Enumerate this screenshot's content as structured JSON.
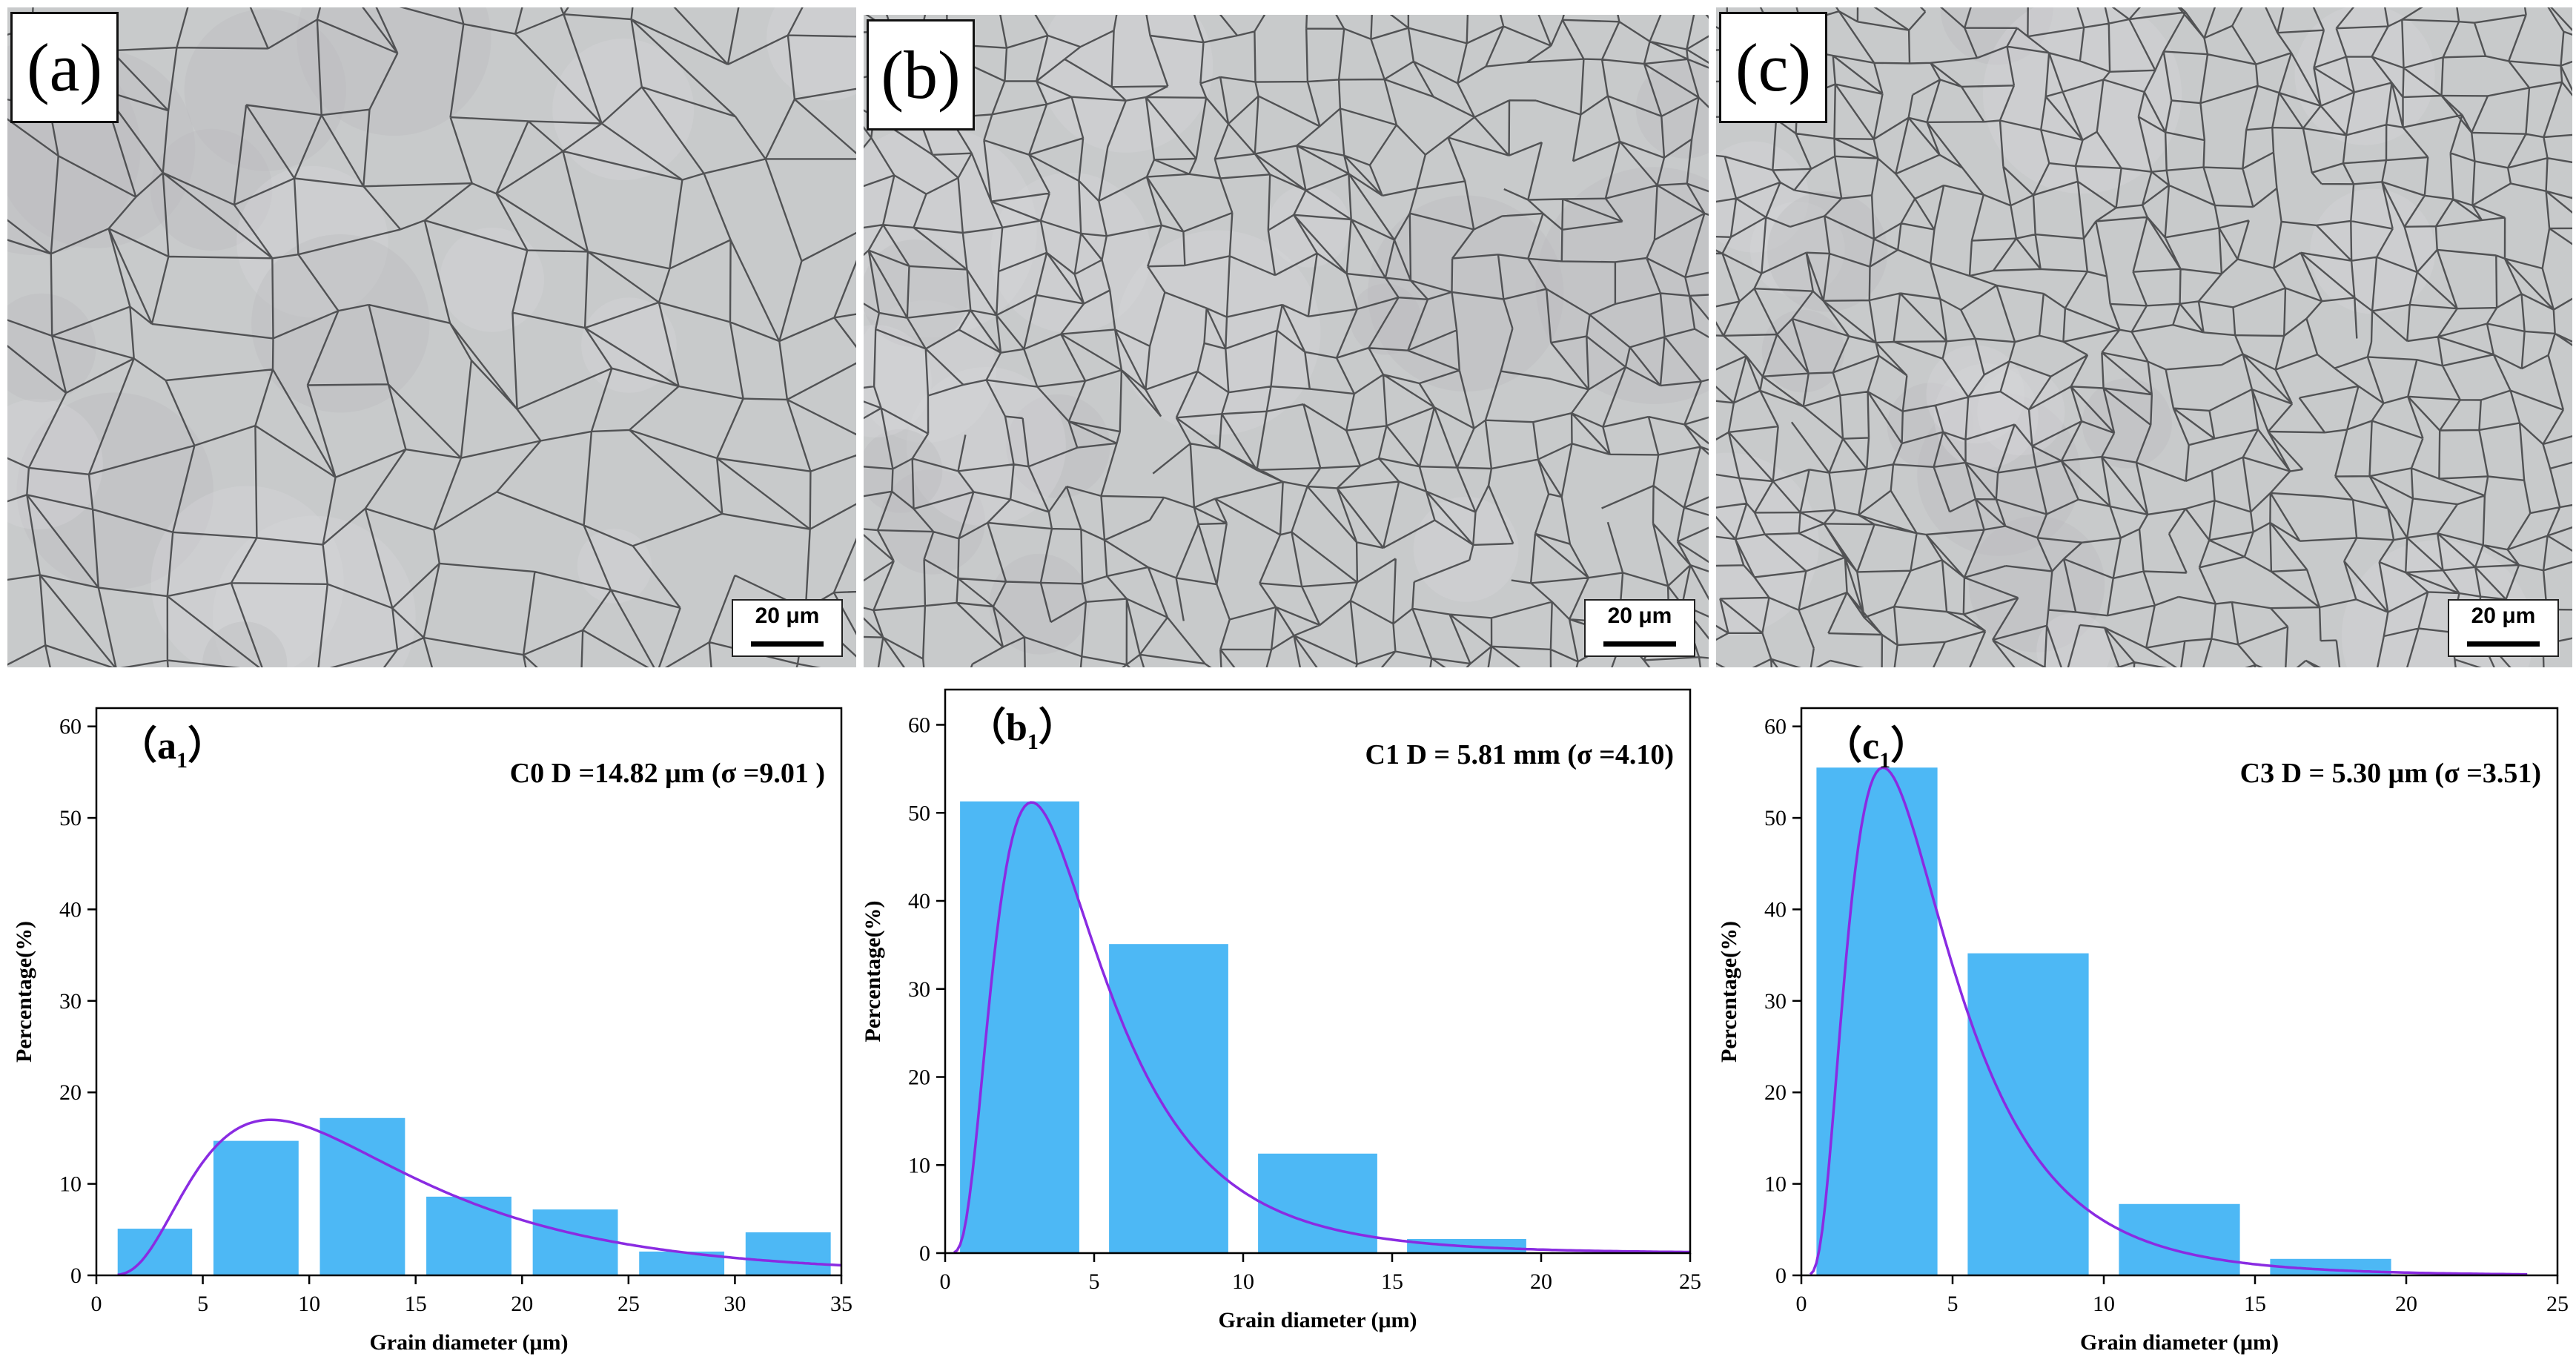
{
  "micrographs": [
    {
      "label": "(a)",
      "scale": "20 μm"
    },
    {
      "label": "(b)",
      "scale": "20 μm"
    },
    {
      "label": "(c)",
      "scale": "20 μm"
    }
  ],
  "colors": {
    "bar": "#4db8f5",
    "curve": "#8a2be2",
    "axis": "#000000"
  },
  "chart_data": [
    {
      "type": "bar",
      "panel": "(a₁)",
      "panel_main": "a",
      "panel_sub": "1",
      "annotation": "C0  D =14.82 μm (σ =9.01 )",
      "xlabel": "Grain diameter (μm)",
      "ylabel": "Percentage(%)",
      "xlim": [
        0,
        35
      ],
      "ylim": [
        0,
        62
      ],
      "xticks": [
        0,
        5,
        10,
        15,
        20,
        25,
        30,
        35
      ],
      "yticks": [
        0,
        10,
        20,
        30,
        40,
        50,
        60
      ],
      "bins": [
        [
          1,
          4.5
        ],
        [
          5.5,
          9.5
        ],
        [
          10.5,
          14.5
        ],
        [
          15.5,
          19.5
        ],
        [
          20.5,
          24.5
        ],
        [
          25.5,
          29.5
        ],
        [
          30.5,
          34.5
        ]
      ],
      "values": [
        5.1,
        14.7,
        17.2,
        8.6,
        7.2,
        2.6,
        4.7
      ],
      "fit": {
        "type": "lognormal",
        "peak_x": 8.2,
        "peak_y": 17,
        "start": 1,
        "end": 35
      }
    },
    {
      "type": "bar",
      "panel": "(b₁)",
      "panel_main": "b",
      "panel_sub": "1",
      "annotation": "C1   D = 5.81 mm (σ =4.10)",
      "xlabel": "Grain diameter (μm)",
      "ylabel": "Percentage(%)",
      "xlim": [
        0,
        25
      ],
      "ylim": [
        0,
        64
      ],
      "xticks": [
        0,
        5,
        10,
        15,
        20,
        25
      ],
      "yticks": [
        0,
        10,
        20,
        30,
        40,
        50,
        60
      ],
      "bins": [
        [
          0.5,
          4.5
        ],
        [
          5.5,
          9.5
        ],
        [
          10.5,
          14.5
        ],
        [
          15.5,
          19.5
        ]
      ],
      "values": [
        51.3,
        35.1,
        11.3,
        1.6
      ],
      "fit": {
        "type": "lognormal",
        "peak_x": 2.9,
        "peak_y": 51.2,
        "start": 0.3,
        "end": 25
      }
    },
    {
      "type": "bar",
      "panel": "(c₁)",
      "panel_main": "c",
      "panel_sub": "1",
      "annotation": "C3   D  = 5.30 μm (σ =3.51)",
      "xlabel": "Grain diameter (μm)",
      "ylabel": "Percentage(%)",
      "xlim": [
        0,
        25
      ],
      "ylim": [
        0,
        62
      ],
      "xticks": [
        0,
        5,
        10,
        15,
        20,
        25
      ],
      "yticks": [
        0,
        10,
        20,
        30,
        40,
        50,
        60
      ],
      "bins": [
        [
          0.5,
          4.5
        ],
        [
          5.5,
          9.5
        ],
        [
          10.5,
          14.5
        ],
        [
          15.5,
          19.5
        ]
      ],
      "values": [
        55.5,
        35.2,
        7.8,
        1.8
      ],
      "fit": {
        "type": "lognormal",
        "peak_x": 2.7,
        "peak_y": 55.5,
        "start": 0.3,
        "end": 24
      }
    }
  ]
}
